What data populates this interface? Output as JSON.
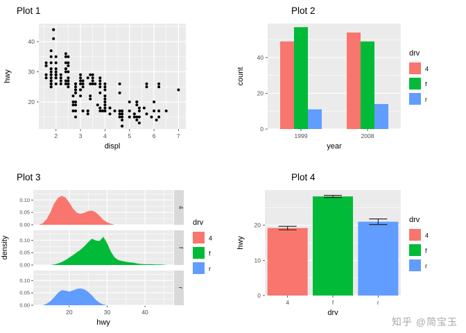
{
  "watermark": "知乎 @简宝玉",
  "theme": {
    "panel_bg": "#EBEBEB",
    "grid": "#FFFFFF",
    "tick": "#333333",
    "tick_text": "#4D4D4D",
    "axis_title": "#000000",
    "strip_bg": "#D9D9D9",
    "point": "#000000"
  },
  "chart_data": [
    {
      "id": "plot1",
      "type": "scatter",
      "title": "Plot 1",
      "xlabel": "displ",
      "ylabel": "hwy",
      "xlim": [
        1.3,
        7.3
      ],
      "ylim": [
        11,
        46
      ],
      "xticks": [
        2,
        3,
        4,
        5,
        6,
        7
      ],
      "yticks": [
        20,
        30,
        40
      ],
      "points": [
        [
          1.6,
          33
        ],
        [
          1.6,
          32
        ],
        [
          1.6,
          32
        ],
        [
          1.6,
          29
        ],
        [
          1.6,
          28
        ],
        [
          1.8,
          29
        ],
        [
          1.8,
          29
        ],
        [
          1.8,
          31
        ],
        [
          1.8,
          26
        ],
        [
          1.8,
          27
        ],
        [
          1.8,
          30
        ],
        [
          1.8,
          31
        ],
        [
          1.8,
          26
        ],
        [
          1.8,
          25
        ],
        [
          1.8,
          28
        ],
        [
          1.8,
          27
        ],
        [
          1.8,
          25
        ],
        [
          1.8,
          26
        ],
        [
          1.8,
          33
        ],
        [
          1.8,
          35
        ],
        [
          1.8,
          37
        ],
        [
          1.9,
          44
        ],
        [
          1.9,
          41
        ],
        [
          1.9,
          44
        ],
        [
          2.0,
          31
        ],
        [
          2.0,
          30
        ],
        [
          2.0,
          33
        ],
        [
          2.0,
          35
        ],
        [
          2.0,
          29
        ],
        [
          2.0,
          28
        ],
        [
          2.0,
          29
        ],
        [
          2.0,
          29
        ],
        [
          2.0,
          28
        ],
        [
          2.0,
          26
        ],
        [
          2.2,
          27
        ],
        [
          2.2,
          26
        ],
        [
          2.2,
          29
        ],
        [
          2.2,
          28
        ],
        [
          2.4,
          31
        ],
        [
          2.4,
          31
        ],
        [
          2.4,
          27
        ],
        [
          2.4,
          26
        ],
        [
          2.4,
          30
        ],
        [
          2.4,
          33
        ],
        [
          2.4,
          35
        ],
        [
          2.4,
          36
        ],
        [
          2.5,
          26
        ],
        [
          2.5,
          28
        ],
        [
          2.5,
          30
        ],
        [
          2.5,
          33
        ],
        [
          2.5,
          35
        ],
        [
          2.5,
          27
        ],
        [
          2.5,
          26
        ],
        [
          2.5,
          25
        ],
        [
          2.5,
          32
        ],
        [
          2.7,
          17
        ],
        [
          2.7,
          19
        ],
        [
          2.7,
          20
        ],
        [
          2.7,
          22
        ],
        [
          2.8,
          26
        ],
        [
          2.8,
          25
        ],
        [
          2.8,
          24
        ],
        [
          2.8,
          23
        ],
        [
          2.8,
          20
        ],
        [
          2.8,
          15
        ],
        [
          2.8,
          17
        ],
        [
          2.8,
          26
        ],
        [
          2.8,
          23
        ],
        [
          2.8,
          24
        ],
        [
          2.8,
          19
        ],
        [
          3.0,
          26
        ],
        [
          3.0,
          28
        ],
        [
          3.0,
          29
        ],
        [
          3.0,
          27
        ],
        [
          3.0,
          24
        ],
        [
          3.0,
          22
        ],
        [
          3.0,
          24
        ],
        [
          3.1,
          25
        ],
        [
          3.1,
          26
        ],
        [
          3.1,
          27
        ],
        [
          3.1,
          17
        ],
        [
          3.3,
          28
        ],
        [
          3.3,
          17
        ],
        [
          3.3,
          17
        ],
        [
          3.3,
          16
        ],
        [
          3.4,
          22
        ],
        [
          3.4,
          21
        ],
        [
          3.4,
          29
        ],
        [
          3.4,
          26
        ],
        [
          3.5,
          29
        ],
        [
          3.5,
          26
        ],
        [
          3.5,
          27
        ],
        [
          3.5,
          28
        ],
        [
          3.6,
          26
        ],
        [
          3.7,
          19
        ],
        [
          3.8,
          26
        ],
        [
          3.8,
          25
        ],
        [
          3.8,
          28
        ],
        [
          3.8,
          27
        ],
        [
          3.8,
          23
        ],
        [
          3.8,
          18
        ],
        [
          3.8,
          17
        ],
        [
          3.9,
          17
        ],
        [
          3.9,
          17
        ],
        [
          4.0,
          26
        ],
        [
          4.0,
          25
        ],
        [
          4.0,
          24
        ],
        [
          4.0,
          19
        ],
        [
          4.0,
          21
        ],
        [
          4.0,
          22
        ],
        [
          4.0,
          18
        ],
        [
          4.0,
          20
        ],
        [
          4.0,
          17
        ],
        [
          4.0,
          17
        ],
        [
          4.2,
          16
        ],
        [
          4.2,
          18
        ],
        [
          4.2,
          18
        ],
        [
          4.4,
          17
        ],
        [
          4.6,
          15
        ],
        [
          4.6,
          17
        ],
        [
          4.6,
          17
        ],
        [
          4.6,
          16
        ],
        [
          4.6,
          26
        ],
        [
          4.6,
          23
        ],
        [
          4.7,
          17
        ],
        [
          4.7,
          12
        ],
        [
          4.7,
          12
        ],
        [
          4.7,
          16
        ],
        [
          4.7,
          17
        ],
        [
          4.7,
          15
        ],
        [
          4.7,
          16
        ],
        [
          4.7,
          14
        ],
        [
          5.0,
          20
        ],
        [
          5.0,
          17
        ],
        [
          5.0,
          15
        ],
        [
          5.2,
          15
        ],
        [
          5.2,
          16
        ],
        [
          5.2,
          16
        ],
        [
          5.3,
          20
        ],
        [
          5.3,
          19
        ],
        [
          5.3,
          14
        ],
        [
          5.3,
          15
        ],
        [
          5.3,
          20
        ],
        [
          5.4,
          18
        ],
        [
          5.4,
          17
        ],
        [
          5.4,
          13
        ],
        [
          5.4,
          15
        ],
        [
          5.6,
          18
        ],
        [
          5.7,
          16
        ],
        [
          5.7,
          25
        ],
        [
          5.7,
          26
        ],
        [
          5.9,
          15
        ],
        [
          6.0,
          17
        ],
        [
          6.0,
          20
        ],
        [
          6.1,
          14
        ],
        [
          6.2,
          26
        ],
        [
          6.2,
          25
        ],
        [
          6.2,
          15
        ],
        [
          6.2,
          17
        ],
        [
          6.5,
          17
        ],
        [
          7.0,
          24
        ]
      ]
    },
    {
      "id": "plot2",
      "type": "bar",
      "title": "Plot 2",
      "xlabel": "year",
      "ylabel": "count",
      "categories": [
        "1999",
        "2008"
      ],
      "series": [
        {
          "name": "4",
          "color": "#F8766D",
          "values": [
            49,
            54
          ]
        },
        {
          "name": "f",
          "color": "#00BA38",
          "values": [
            57,
            49
          ]
        },
        {
          "name": "r",
          "color": "#619CFF",
          "values": [
            11,
            14
          ]
        }
      ],
      "yticks": [
        0,
        20,
        40
      ],
      "ylim": [
        0,
        59
      ],
      "legend_title": "drv"
    },
    {
      "id": "plot3",
      "type": "density-facets",
      "title": "Plot 3",
      "xlabel": "hwy",
      "ylabel": "density",
      "xlim": [
        10.5,
        47.5
      ],
      "xticks": [
        20,
        30,
        40
      ],
      "yticks": [
        0,
        0.05,
        0.1
      ],
      "ylim": [
        0,
        0.14
      ],
      "legend_title": "drv",
      "facets": [
        {
          "name": "4",
          "color": "#F8766D",
          "curve": [
            [
              12,
              0
            ],
            [
              13,
              0.006
            ],
            [
              14,
              0.022
            ],
            [
              15,
              0.05
            ],
            [
              16,
              0.085
            ],
            [
              17,
              0.108
            ],
            [
              18,
              0.117
            ],
            [
              19,
              0.11
            ],
            [
              20,
              0.09
            ],
            [
              21,
              0.065
            ],
            [
              22,
              0.049
            ],
            [
              23,
              0.044
            ],
            [
              24,
              0.049
            ],
            [
              25,
              0.055
            ],
            [
              26,
              0.057
            ],
            [
              27,
              0.05
            ],
            [
              28,
              0.036
            ],
            [
              29,
              0.02
            ],
            [
              30,
              0.01
            ],
            [
              31,
              0.004
            ],
            [
              32,
              0
            ]
          ]
        },
        {
          "name": "f",
          "color": "#00BA38",
          "curve": [
            [
              15,
              0
            ],
            [
              16,
              0.002
            ],
            [
              17,
              0.006
            ],
            [
              18,
              0.012
            ],
            [
              19,
              0.02
            ],
            [
              20,
              0.03
            ],
            [
              21,
              0.04
            ],
            [
              22,
              0.051
            ],
            [
              23,
              0.062
            ],
            [
              24,
              0.076
            ],
            [
              25,
              0.092
            ],
            [
              26,
              0.106
            ],
            [
              27,
              0.099
            ],
            [
              28,
              0.097
            ],
            [
              29,
              0.114
            ],
            [
              30,
              0.088
            ],
            [
              31,
              0.054
            ],
            [
              32,
              0.03
            ],
            [
              33,
              0.02
            ],
            [
              34,
              0.016
            ],
            [
              35,
              0.013
            ],
            [
              36,
              0.011
            ],
            [
              37,
              0.009
            ],
            [
              38,
              0.006
            ],
            [
              39,
              0.004
            ],
            [
              40,
              0.003
            ],
            [
              41,
              0.003
            ],
            [
              42,
              0.003
            ],
            [
              43,
              0.002
            ],
            [
              44,
              0.002
            ],
            [
              45,
              0.001
            ],
            [
              46,
              0
            ]
          ]
        },
        {
          "name": "r",
          "color": "#619CFF",
          "curve": [
            [
              13,
              0
            ],
            [
              14,
              0.006
            ],
            [
              15,
              0.016
            ],
            [
              16,
              0.032
            ],
            [
              17,
              0.05
            ],
            [
              18,
              0.061
            ],
            [
              19,
              0.059
            ],
            [
              20,
              0.055
            ],
            [
              21,
              0.06
            ],
            [
              22,
              0.066
            ],
            [
              23,
              0.068
            ],
            [
              24,
              0.064
            ],
            [
              25,
              0.054
            ],
            [
              26,
              0.04
            ],
            [
              27,
              0.022
            ],
            [
              28,
              0.01
            ],
            [
              29,
              0.003
            ],
            [
              30,
              0
            ]
          ]
        }
      ]
    },
    {
      "id": "plot4",
      "type": "bar-error",
      "title": "Plot 4",
      "xlabel": "drv",
      "ylabel": "hwy",
      "categories": [
        "4",
        "f",
        "r"
      ],
      "values": [
        19.2,
        28.2,
        21.0
      ],
      "errors": [
        0.5,
        0.3,
        0.8
      ],
      "colors": [
        "#F8766D",
        "#00BA38",
        "#619CFF"
      ],
      "yticks": [
        0,
        10,
        20
      ],
      "ylim": [
        0,
        30
      ],
      "legend_title": "drv"
    }
  ]
}
